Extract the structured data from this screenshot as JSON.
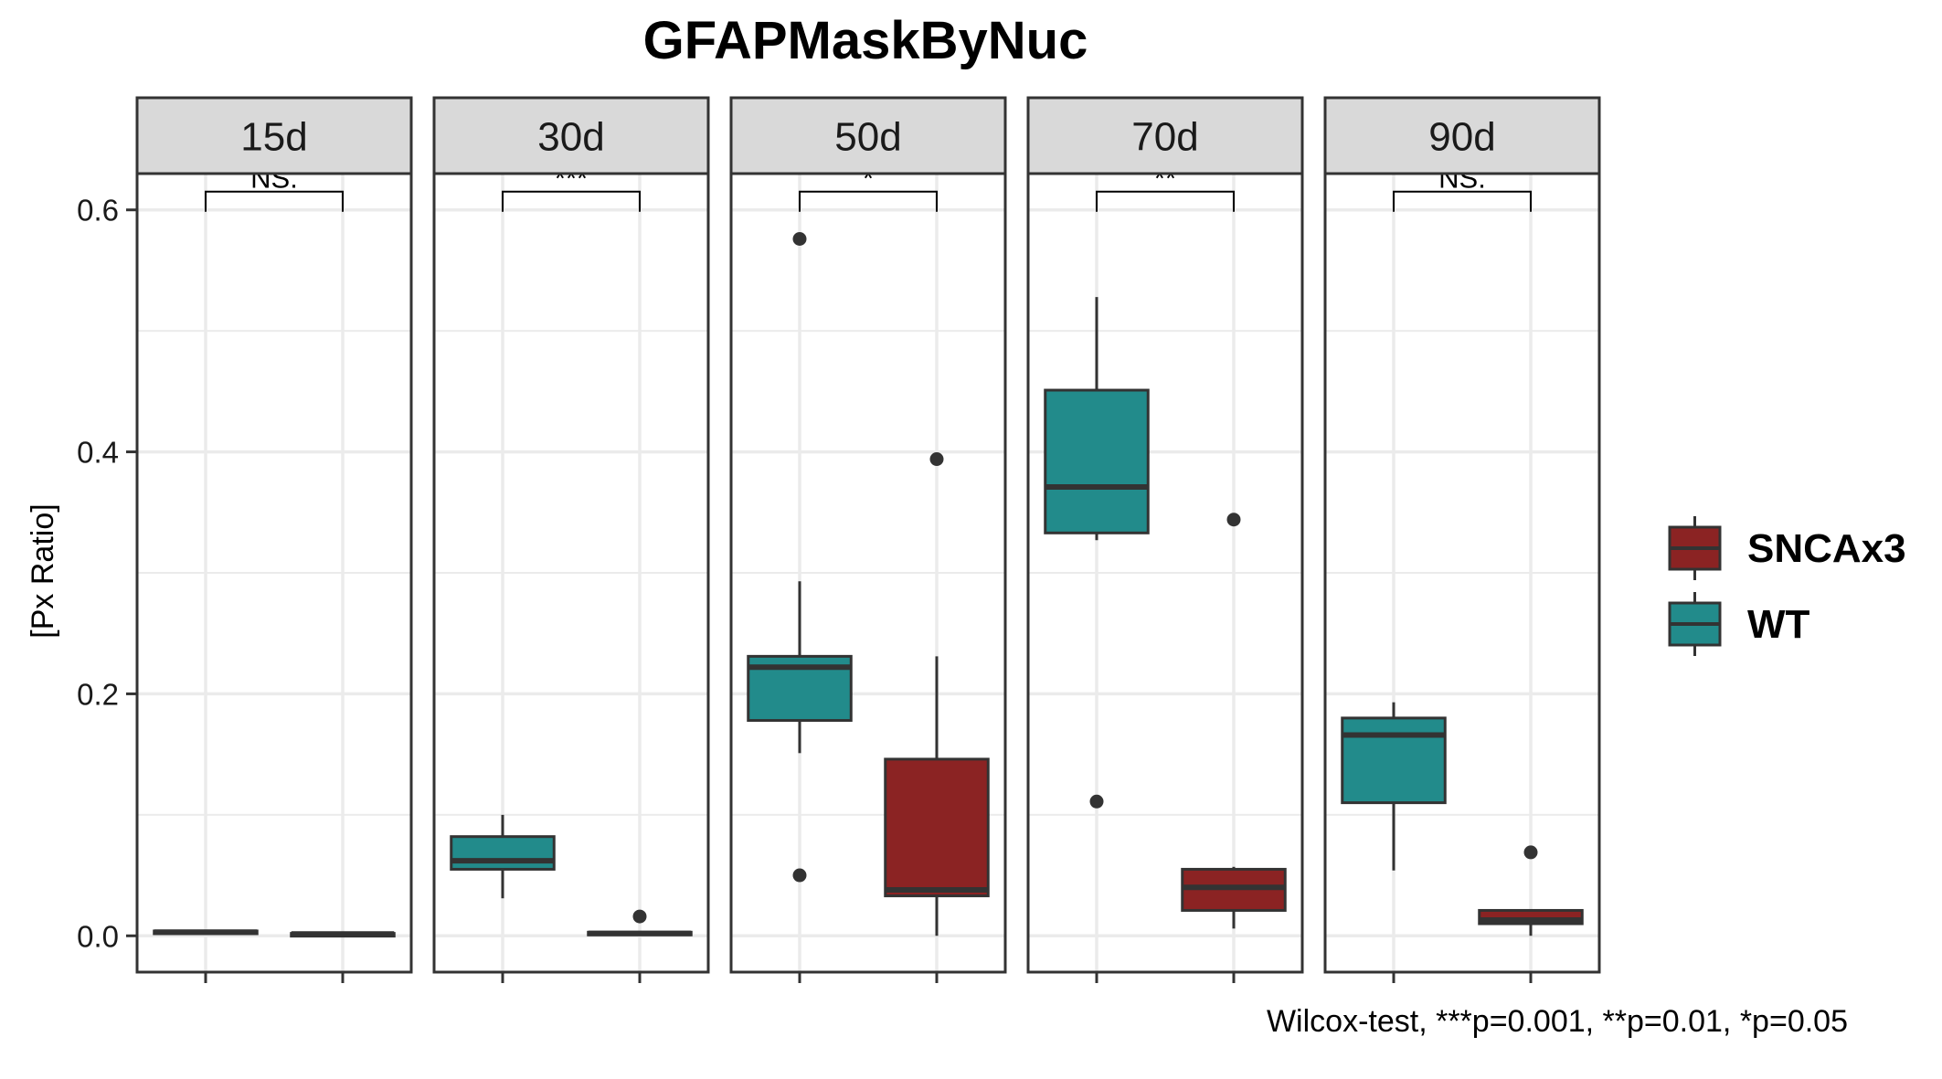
{
  "chart_data": {
    "type": "boxplot",
    "title": "GFAPMaskByNuc",
    "ylabel": "[Px Ratio]",
    "xlabel": "",
    "ylim": [
      -0.03,
      0.63
    ],
    "yticks": [
      0.0,
      0.2,
      0.4,
      0.6
    ],
    "ytick_labels": [
      "0.0",
      "0.2",
      "0.4",
      "0.6"
    ],
    "grid": true,
    "legend_position": "right",
    "series": [
      {
        "name": "WT",
        "color": "#228B8B"
      },
      {
        "name": "SNCAx3",
        "color": "#8B2323"
      }
    ],
    "panels": [
      {
        "label": "15d",
        "significance": "NS.",
        "groups": [
          {
            "series": "WT",
            "whisker_low": 0.001,
            "q1": 0.002,
            "median": 0.003,
            "q3": 0.004,
            "whisker_high": 0.005,
            "outliers": []
          },
          {
            "series": "SNCAx3",
            "whisker_low": 0.0005,
            "q1": 0.001,
            "median": 0.0015,
            "q3": 0.002,
            "whisker_high": 0.003,
            "outliers": []
          }
        ]
      },
      {
        "label": "30d",
        "significance": "***",
        "groups": [
          {
            "series": "WT",
            "whisker_low": 0.031,
            "q1": 0.055,
            "median": 0.062,
            "q3": 0.082,
            "whisker_high": 0.1,
            "outliers": []
          },
          {
            "series": "SNCAx3",
            "whisker_low": 0.0005,
            "q1": 0.001,
            "median": 0.002,
            "q3": 0.003,
            "whisker_high": 0.004,
            "outliers": [
              0.016
            ]
          }
        ]
      },
      {
        "label": "50d",
        "significance": "*",
        "groups": [
          {
            "series": "WT",
            "whisker_low": 0.151,
            "q1": 0.178,
            "median": 0.222,
            "q3": 0.231,
            "whisker_high": 0.293,
            "outliers": [
              0.576,
              0.05
            ]
          },
          {
            "series": "SNCAx3",
            "whisker_low": 0.0,
            "q1": 0.033,
            "median": 0.038,
            "q3": 0.146,
            "whisker_high": 0.231,
            "outliers": [
              0.394
            ]
          }
        ]
      },
      {
        "label": "70d",
        "significance": "**",
        "groups": [
          {
            "series": "WT",
            "whisker_low": 0.327,
            "q1": 0.333,
            "median": 0.371,
            "q3": 0.451,
            "whisker_high": 0.528,
            "outliers": [
              0.111
            ]
          },
          {
            "series": "SNCAx3",
            "whisker_low": 0.006,
            "q1": 0.021,
            "median": 0.04,
            "q3": 0.055,
            "whisker_high": 0.057,
            "outliers": [
              0.344
            ]
          }
        ]
      },
      {
        "label": "90d",
        "significance": "NS.",
        "groups": [
          {
            "series": "WT",
            "whisker_low": 0.054,
            "q1": 0.11,
            "median": 0.166,
            "q3": 0.18,
            "whisker_high": 0.193,
            "outliers": []
          },
          {
            "series": "SNCAx3",
            "whisker_low": 0.0,
            "q1": 0.01,
            "median": 0.013,
            "q3": 0.021,
            "whisker_high": 0.022,
            "outliers": [
              0.069
            ]
          }
        ]
      }
    ],
    "caption": "Wilcox-test, ***p=0.001, **p=0.01, *p=0.05"
  }
}
